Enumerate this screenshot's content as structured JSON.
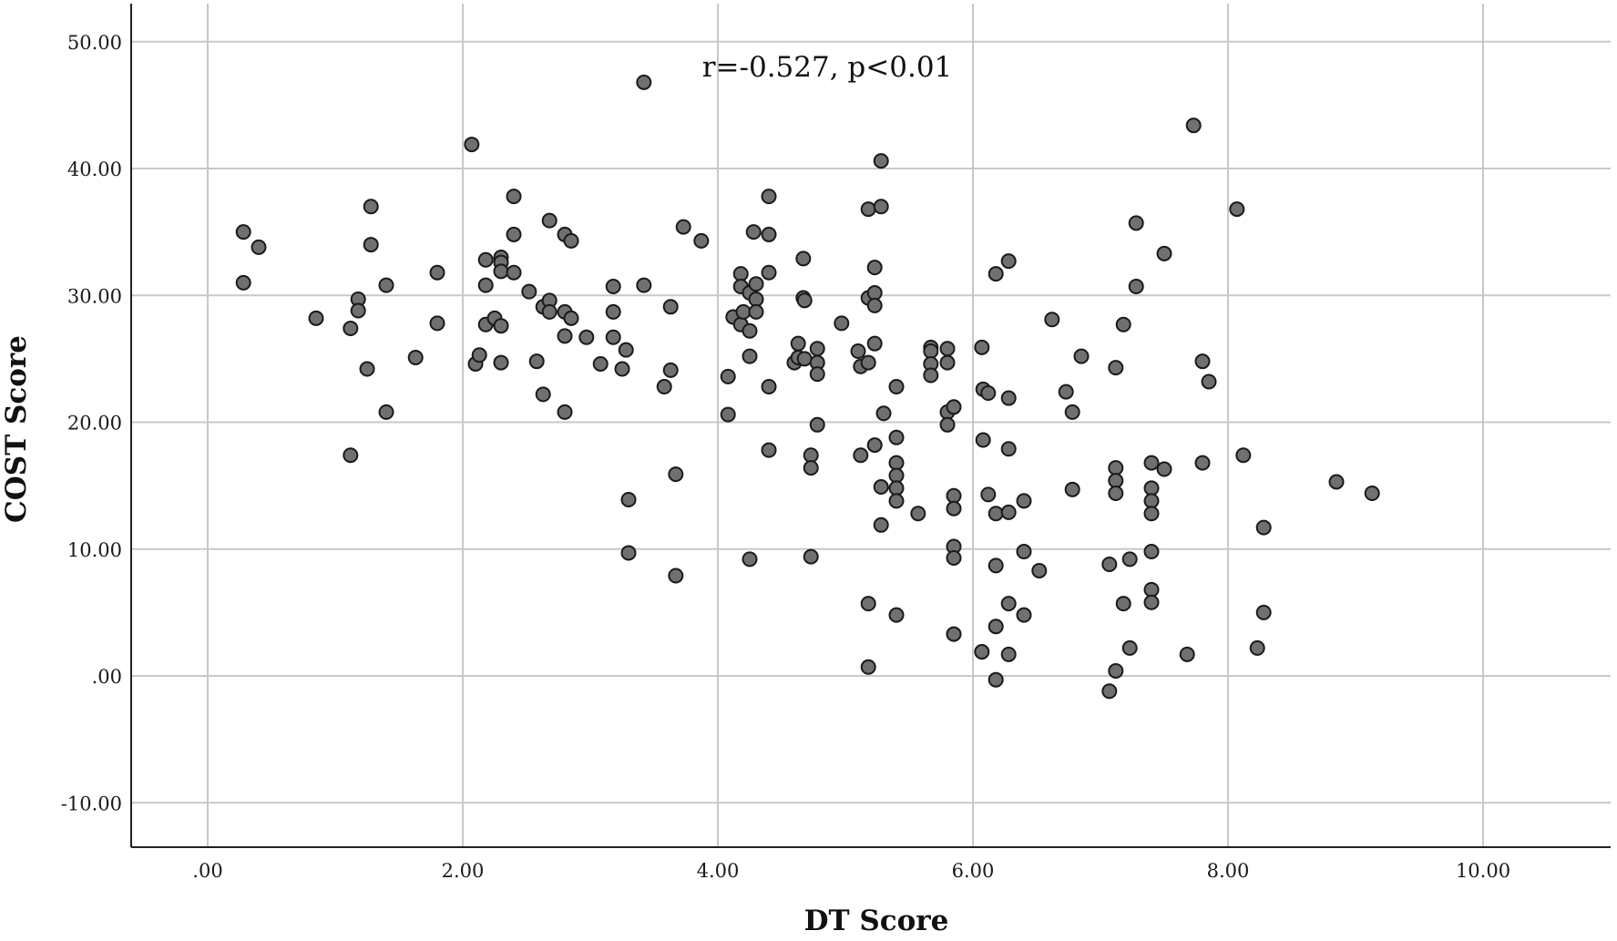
{
  "chart_data": {
    "type": "scatter",
    "xlabel": "DT Score",
    "ylabel": "COST Score",
    "annotation": "r=-0.527, p<0.01",
    "xlim": [
      -0.6,
      11.0
    ],
    "ylim": [
      -13.5,
      53.0
    ],
    "xticks": [
      0,
      2,
      4,
      6,
      8,
      10
    ],
    "xtick_labels": [
      ".00",
      "2.00",
      "4.00",
      "6.00",
      "8.00",
      "10.00"
    ],
    "yticks": [
      -10,
      0,
      10,
      20,
      30,
      40,
      50
    ],
    "ytick_labels": [
      "-10.00",
      ".00",
      "10.00",
      "20.00",
      "30.00",
      "40.00",
      "50.00"
    ],
    "grid": true,
    "colors": {
      "point_fill": "#707070",
      "point_stroke": "#1a1a1a",
      "grid": "#c8c8c8",
      "axis": "#222222"
    },
    "x": [
      0.28,
      0.28,
      0.4,
      0.85,
      1.12,
      1.12,
      1.18,
      1.18,
      1.25,
      1.28,
      1.28,
      1.4,
      1.4,
      1.63,
      1.8,
      1.8,
      2.07,
      2.1,
      2.13,
      2.18,
      2.18,
      2.18,
      2.25,
      2.3,
      2.3,
      2.3,
      2.3,
      2.3,
      2.4,
      2.4,
      2.4,
      2.52,
      2.58,
      2.63,
      2.63,
      2.68,
      2.68,
      2.68,
      2.8,
      2.8,
      2.8,
      2.8,
      2.85,
      2.85,
      2.97,
      3.08,
      3.18,
      3.18,
      3.18,
      3.25,
      3.28,
      3.3,
      3.3,
      3.42,
      3.42,
      3.58,
      3.63,
      3.63,
      3.67,
      3.67,
      3.73,
      3.87,
      4.08,
      4.08,
      4.12,
      4.18,
      4.18,
      4.18,
      4.2,
      4.25,
      4.25,
      4.25,
      4.25,
      4.28,
      4.3,
      4.3,
      4.3,
      4.4,
      4.4,
      4.4,
      4.4,
      4.4,
      4.6,
      4.63,
      4.63,
      4.67,
      4.67,
      4.68,
      4.68,
      4.73,
      4.73,
      4.73,
      4.78,
      4.78,
      4.78,
      4.78,
      4.97,
      5.1,
      5.12,
      5.12,
      5.18,
      5.18,
      5.18,
      5.18,
      5.18,
      5.23,
      5.23,
      5.23,
      5.23,
      5.23,
      5.28,
      5.28,
      5.28,
      5.28,
      5.3,
      5.4,
      5.4,
      5.4,
      5.4,
      5.4,
      5.4,
      5.4,
      5.57,
      5.67,
      5.67,
      5.67,
      5.67,
      5.8,
      5.8,
      5.8,
      5.8,
      5.85,
      5.85,
      5.85,
      5.85,
      5.85,
      5.85,
      6.07,
      6.07,
      6.08,
      6.08,
      6.12,
      6.12,
      6.18,
      6.18,
      6.18,
      6.18,
      6.18,
      6.28,
      6.28,
      6.28,
      6.28,
      6.28,
      6.28,
      6.4,
      6.4,
      6.4,
      6.52,
      6.62,
      6.73,
      6.78,
      6.78,
      6.85,
      7.07,
      7.07,
      7.12,
      7.12,
      7.12,
      7.12,
      7.12,
      7.18,
      7.18,
      7.23,
      7.23,
      7.28,
      7.28,
      7.4,
      7.4,
      7.4,
      7.4,
      7.4,
      7.4,
      7.4,
      7.5,
      7.5,
      7.68,
      7.73,
      7.8,
      7.8,
      7.85,
      8.07,
      8.12,
      8.23,
      8.28,
      8.28,
      8.85,
      9.13
    ],
    "y": [
      35.0,
      31.0,
      33.8,
      28.2,
      27.4,
      17.4,
      29.7,
      28.8,
      24.2,
      37.0,
      34.0,
      30.8,
      20.8,
      25.1,
      31.8,
      27.8,
      41.9,
      24.6,
      25.3,
      32.8,
      30.8,
      27.7,
      28.2,
      33.0,
      32.6,
      31.9,
      27.6,
      24.7,
      37.8,
      34.8,
      31.8,
      30.3,
      24.8,
      29.1,
      22.2,
      35.9,
      29.6,
      28.7,
      34.8,
      28.7,
      26.8,
      20.8,
      34.3,
      28.2,
      26.7,
      24.6,
      30.7,
      28.7,
      26.7,
      24.2,
      25.7,
      13.9,
      9.7,
      46.8,
      30.8,
      22.8,
      29.1,
      24.1,
      15.9,
      7.9,
      35.4,
      34.3,
      23.6,
      20.6,
      28.3,
      31.7,
      30.7,
      27.7,
      28.7,
      30.2,
      27.2,
      25.2,
      9.2,
      35.0,
      30.9,
      29.7,
      28.7,
      37.8,
      34.8,
      31.8,
      22.8,
      17.8,
      24.7,
      26.2,
      25.1,
      32.9,
      29.8,
      29.6,
      25.0,
      17.4,
      16.4,
      9.4,
      25.8,
      24.7,
      23.8,
      19.8,
      27.8,
      25.6,
      24.4,
      17.4,
      36.8,
      29.8,
      24.7,
      5.7,
      0.7,
      32.2,
      30.2,
      29.2,
      26.2,
      18.2,
      40.6,
      37.0,
      14.9,
      11.9,
      20.7,
      22.8,
      18.8,
      16.8,
      15.8,
      14.8,
      13.8,
      4.8,
      12.8,
      25.9,
      25.6,
      24.6,
      23.7,
      25.8,
      24.7,
      20.8,
      19.8,
      21.2,
      14.2,
      13.2,
      10.2,
      9.3,
      3.3,
      25.9,
      1.9,
      22.6,
      18.6,
      22.3,
      14.3,
      31.7,
      12.8,
      8.7,
      3.9,
      -0.3,
      32.7,
      21.9,
      17.9,
      12.9,
      5.7,
      1.7,
      13.8,
      9.8,
      4.8,
      8.3,
      28.1,
      22.4,
      20.8,
      14.7,
      25.2,
      8.8,
      -1.2,
      24.3,
      16.4,
      15.4,
      14.4,
      0.4,
      27.7,
      5.7,
      9.2,
      2.2,
      35.7,
      30.7,
      16.8,
      14.8,
      13.8,
      12.8,
      9.8,
      6.8,
      5.8,
      33.3,
      16.3,
      1.7,
      43.4,
      24.8,
      16.8,
      23.2,
      36.8,
      17.4,
      2.2,
      11.7,
      5.0,
      15.3,
      14.4
    ]
  }
}
